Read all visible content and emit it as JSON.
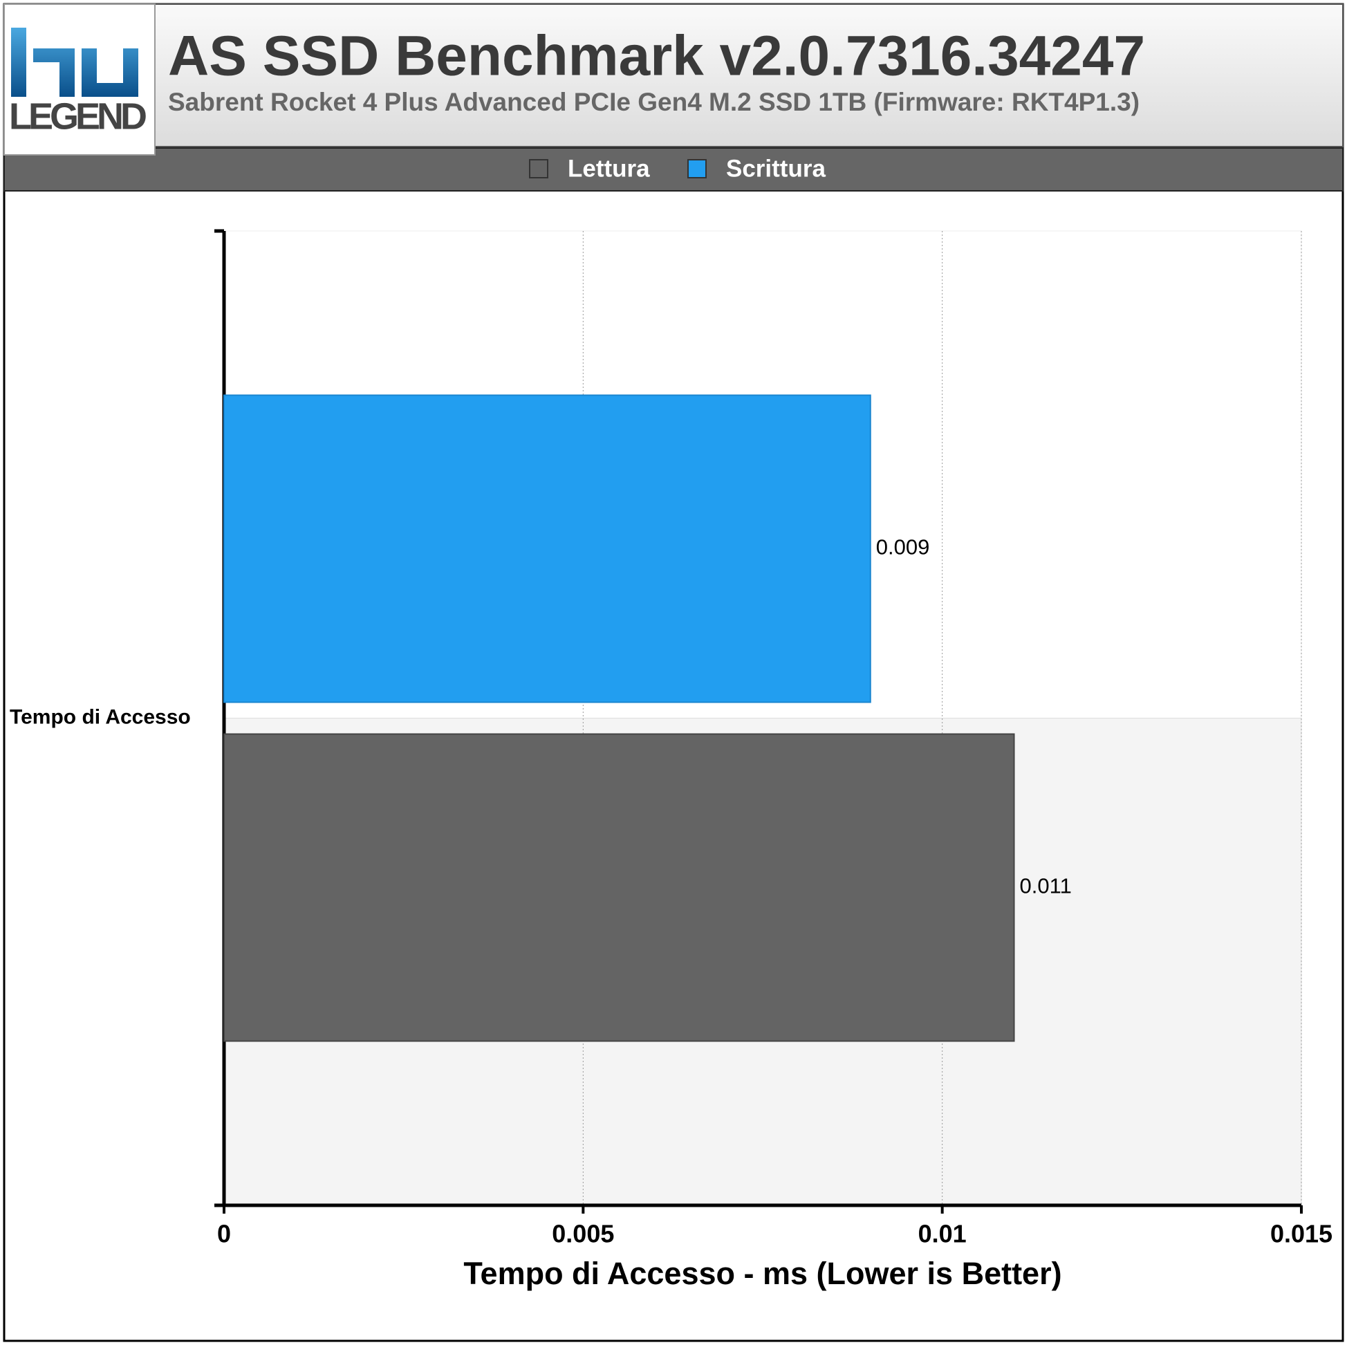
{
  "logo_text": "LEGEND",
  "chart_data": {
    "type": "hbar",
    "title": "AS SSD Benchmark v2.0.7316.34247",
    "subtitle": "Sabrent Rocket 4 Plus Advanced PCIe Gen4 M.2 SSD 1TB (Firmware: RKT4P1.3)",
    "x_label": "Tempo di Accesso - ms (Lower is Better)",
    "categories": [
      "Tempo di Accesso"
    ],
    "series": [
      {
        "name": "Lettura",
        "color": "#646464",
        "values": [
          0.011
        ]
      },
      {
        "name": "Scrittura",
        "color": "#229ef0",
        "values": [
          0.009
        ]
      }
    ],
    "xlim": [
      0,
      0.015
    ],
    "xticks": [
      0,
      0.005,
      0.01,
      0.015
    ],
    "grid": true,
    "legend": "top"
  }
}
